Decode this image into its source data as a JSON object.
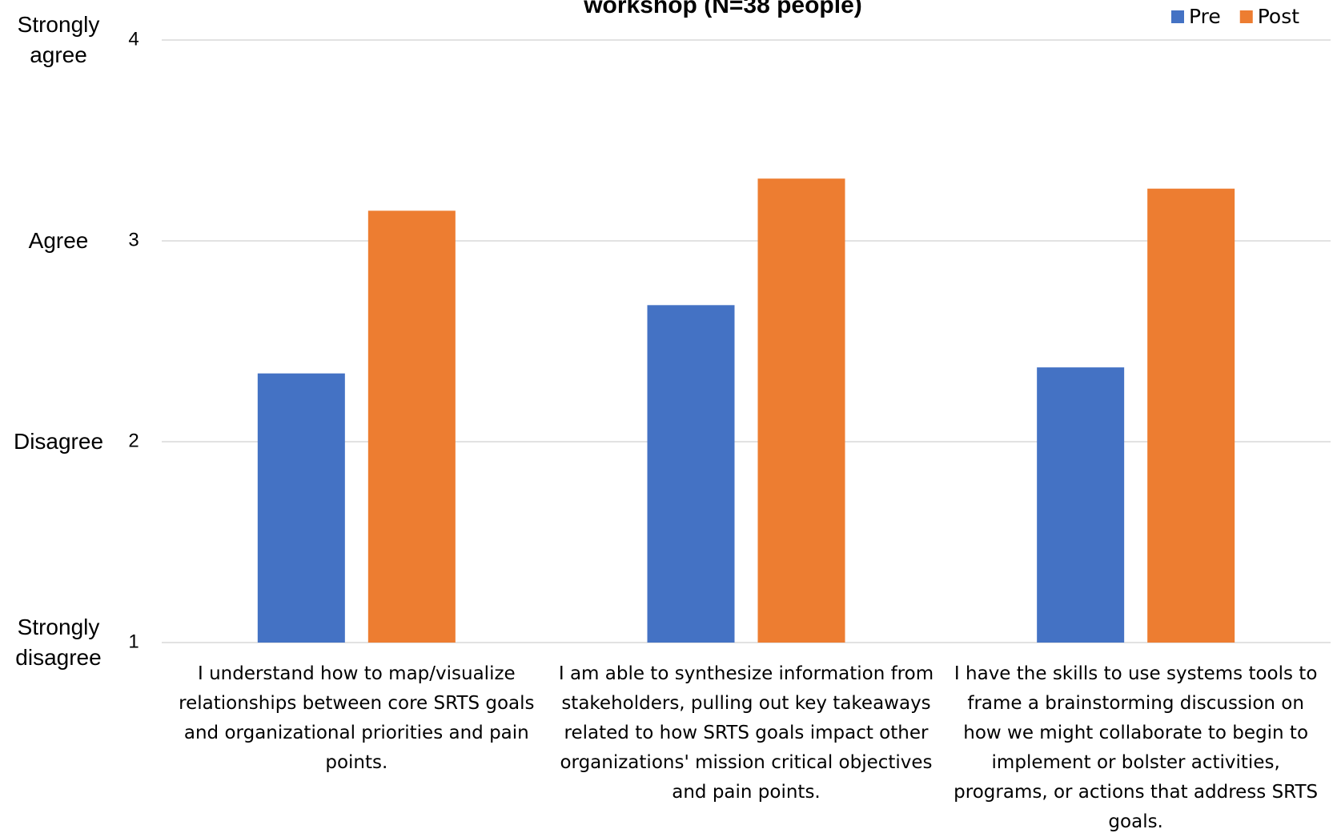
{
  "chart_data": {
    "type": "bar",
    "title": "workshop (N=38 people)",
    "categories": [
      "I understand how to map/visualize relationships between core SRTS goals and organizational priorities and pain points.",
      "I am able to synthesize information from stakeholders, pulling out key takeaways related to how SRTS goals impact other organizations' mission critical objectives and pain points.",
      "I have the skills to use systems tools to frame a brainstorming discussion on how we might collaborate to begin to implement or bolster activities, programs, or actions that address SRTS goals."
    ],
    "series": [
      {
        "name": "Pre",
        "color": "#4472c4",
        "values": [
          2.34,
          2.68,
          2.37
        ]
      },
      {
        "name": "Post",
        "color": "#ed7d31",
        "values": [
          3.15,
          3.31,
          3.26
        ]
      }
    ],
    "ylim": [
      1,
      4
    ],
    "yticks": [
      1,
      2,
      3,
      4
    ],
    "y_annotations": [
      {
        "value": 4,
        "label": "Strongly agree"
      },
      {
        "value": 3,
        "label": "Agree"
      },
      {
        "value": 2,
        "label": "Disagree"
      },
      {
        "value": 1,
        "label": "Strongly disagree"
      }
    ],
    "grid": true,
    "legend": "top-right"
  }
}
